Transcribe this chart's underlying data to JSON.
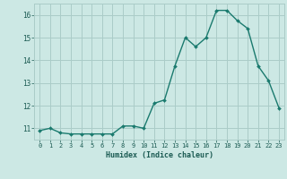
{
  "x": [
    0,
    1,
    2,
    3,
    4,
    5,
    6,
    7,
    8,
    9,
    10,
    11,
    12,
    13,
    14,
    15,
    16,
    17,
    18,
    19,
    20,
    21,
    22,
    23
  ],
  "y": [
    10.9,
    11.0,
    10.8,
    10.75,
    10.75,
    10.75,
    10.75,
    10.75,
    11.1,
    11.1,
    11.0,
    12.1,
    12.25,
    13.75,
    15.0,
    14.6,
    15.0,
    16.2,
    16.2,
    15.75,
    15.4,
    13.75,
    13.1,
    11.9
  ],
  "xlabel": "Humidex (Indice chaleur)",
  "ylabel": "",
  "xlim": [
    -0.5,
    23.5
  ],
  "ylim": [
    10.5,
    16.5
  ],
  "yticks": [
    11,
    12,
    13,
    14,
    15,
    16
  ],
  "xticks": [
    0,
    1,
    2,
    3,
    4,
    5,
    6,
    7,
    8,
    9,
    10,
    11,
    12,
    13,
    14,
    15,
    16,
    17,
    18,
    19,
    20,
    21,
    22,
    23
  ],
  "line_color": "#1a7a6e",
  "marker_color": "#1a7a6e",
  "bg_color": "#cce8e4",
  "grid_color": "#aaccc8",
  "tick_label_color": "#1a5a52"
}
